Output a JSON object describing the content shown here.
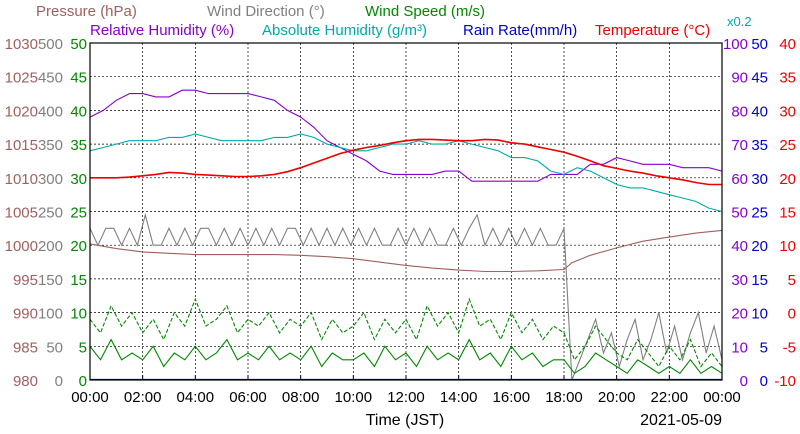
{
  "colors": {
    "pressure": "#a06060",
    "wind_direction": "#808080",
    "wind_speed": "#008800",
    "humidity": "#8800cc",
    "abs_humidity": "#00aaaa",
    "rain": "#0000cc",
    "temperature": "#ee0000",
    "grid": "#000000"
  },
  "chart_data": {
    "type": "line",
    "legend": [
      {
        "key": "pressure",
        "label": "Pressure (hPa)"
      },
      {
        "key": "wind_direction",
        "label": "Wind Direction (°)"
      },
      {
        "key": "wind_speed",
        "label": "Wind Speed (m/s)"
      },
      {
        "key": "humidity",
        "label": "Relative Humidity (%)"
      },
      {
        "key": "abs_humidity",
        "label": "Absolute Humidity (g/m³)"
      },
      {
        "key": "rain",
        "label": "Rain Rate(mm/h)"
      },
      {
        "key": "temperature",
        "label": "Temperature (°C)"
      }
    ],
    "abs_humidity_scale_note": "x0.2",
    "xlabel": "Time (JST)",
    "date_label": "2021-05-09",
    "x_ticks": [
      "00:00",
      "02:00",
      "04:00",
      "06:00",
      "08:00",
      "10:00",
      "12:00",
      "14:00",
      "16:00",
      "18:00",
      "20:00",
      "22:00",
      "00:00"
    ],
    "grid": true,
    "axes": {
      "pressure": {
        "ticks": [
          "1030",
          "1025",
          "1020",
          "1015",
          "1010",
          "1005",
          "1000",
          "995",
          "990",
          "985",
          "980"
        ],
        "ylim": [
          980,
          1030
        ]
      },
      "wind_direction": {
        "ticks": [
          "500",
          "450",
          "400",
          "350",
          "300",
          "250",
          "200",
          "150",
          "100",
          "50",
          "0"
        ],
        "ylim": [
          0,
          500
        ]
      },
      "wind_speed": {
        "ticks": [
          "50",
          "45",
          "40",
          "35",
          "30",
          "25",
          "20",
          "15",
          "10",
          "5",
          "0"
        ],
        "ylim": [
          0,
          50
        ]
      },
      "humidity": {
        "ticks": [
          "100",
          "90",
          "80",
          "70",
          "60",
          "50",
          "40",
          "30",
          "20",
          "10",
          "0"
        ],
        "ylim": [
          0,
          100
        ]
      },
      "rain": {
        "ticks": [
          "50",
          "45",
          "40",
          "35",
          "30",
          "25",
          "20",
          "15",
          "10",
          "5",
          "0"
        ],
        "ylim": [
          0,
          50
        ]
      },
      "temperature": {
        "ticks": [
          "40",
          "35",
          "30",
          "25",
          "20",
          "15",
          "10",
          "5",
          "0",
          "-5",
          "-10"
        ],
        "ylim": [
          -10,
          40
        ]
      }
    },
    "series": [
      {
        "name": "Relative Humidity (%)",
        "axis": "humidity",
        "x": [
          0,
          0.5,
          1,
          1.5,
          2,
          2.5,
          3,
          3.5,
          4,
          4.5,
          5,
          5.5,
          6,
          6.5,
          7,
          7.5,
          8,
          8.5,
          9,
          9.5,
          10,
          10.5,
          11,
          11.5,
          12,
          12.5,
          13,
          13.5,
          14,
          14.5,
          15,
          15.5,
          16,
          16.5,
          17,
          17.5,
          18,
          18.5,
          19,
          19.5,
          20,
          20.5,
          21,
          21.5,
          22,
          22.5,
          23,
          23.5,
          24
        ],
        "y": [
          78,
          80,
          83,
          85,
          85,
          84,
          84,
          86,
          86,
          85,
          85,
          85,
          85,
          84,
          83,
          80,
          78,
          75,
          71,
          69,
          67,
          65,
          62,
          61,
          61,
          61,
          61,
          62,
          62,
          59,
          59,
          59,
          59,
          59,
          59,
          61,
          61,
          61,
          64,
          64,
          66,
          65,
          64,
          64,
          64,
          63,
          63,
          63,
          62
        ]
      },
      {
        "name": "Absolute Humidity (g/m³)",
        "axis": "humidity",
        "x": [
          0,
          0.5,
          1,
          1.5,
          2,
          2.5,
          3,
          3.5,
          4,
          4.5,
          5,
          5.5,
          6,
          6.5,
          7,
          7.5,
          8,
          8.5,
          9,
          9.5,
          10,
          10.5,
          11,
          11.5,
          12,
          12.5,
          13,
          13.5,
          14,
          14.5,
          15,
          15.5,
          16,
          16.5,
          17,
          17.5,
          18,
          18.5,
          19,
          19.5,
          20,
          20.5,
          21,
          21.5,
          22,
          22.5,
          23,
          23.5,
          24
        ],
        "y": [
          68,
          69,
          70,
          71,
          71,
          71,
          72,
          72,
          73,
          72,
          71,
          71,
          71,
          71,
          72,
          72,
          73,
          72,
          70,
          69,
          68,
          68,
          69,
          70,
          70,
          71,
          70,
          70,
          71,
          70,
          69,
          68,
          66,
          66,
          65,
          62,
          61,
          63,
          62,
          60,
          58,
          57,
          57,
          56,
          55,
          54,
          53,
          51,
          50
        ]
      },
      {
        "name": "Temperature (°C)",
        "axis": "temperature",
        "x": [
          0,
          0.5,
          1,
          1.5,
          2,
          2.5,
          3,
          3.5,
          4,
          4.5,
          5,
          5.5,
          6,
          6.5,
          7,
          7.5,
          8,
          8.5,
          9,
          9.5,
          10,
          10.5,
          11,
          11.5,
          12,
          12.5,
          13,
          13.5,
          14,
          14.5,
          15,
          15.5,
          16,
          16.5,
          17,
          17.5,
          18,
          18.5,
          19,
          19.5,
          20,
          20.5,
          21,
          21.5,
          22,
          22.5,
          23,
          23.5,
          24
        ],
        "y": [
          20.0,
          20.0,
          20.0,
          20.1,
          20.3,
          20.5,
          20.8,
          20.7,
          20.5,
          20.4,
          20.3,
          20.2,
          20.2,
          20.3,
          20.5,
          20.9,
          21.5,
          22.2,
          22.9,
          23.6,
          24.1,
          24.5,
          24.8,
          25.2,
          25.5,
          25.7,
          25.7,
          25.6,
          25.5,
          25.5,
          25.7,
          25.6,
          25.2,
          25.0,
          24.6,
          24.2,
          23.8,
          23.2,
          22.5,
          21.8,
          21.4,
          21.0,
          20.7,
          20.3,
          20.0,
          19.7,
          19.3,
          19.0,
          19.0
        ]
      },
      {
        "name": "Pressure (hPa)",
        "axis": "pressure",
        "x": [
          0,
          1,
          2,
          3,
          4,
          5,
          6,
          7,
          8,
          9,
          10,
          11,
          12,
          13,
          14,
          15,
          16,
          17,
          18,
          18.3,
          19,
          20,
          21,
          22,
          23,
          24
        ],
        "y": [
          1000.2,
          999.5,
          999.0,
          998.8,
          998.6,
          998.6,
          998.6,
          998.6,
          998.5,
          998.3,
          998.0,
          997.5,
          997.0,
          996.6,
          996.3,
          996.1,
          996.1,
          996.2,
          996.4,
          997.4,
          998.5,
          999.6,
          1000.6,
          1001.2,
          1001.8,
          1002.2
        ]
      },
      {
        "name": "Wind Direction (°)",
        "axis": "wind_direction",
        "x": [
          0,
          0.3,
          0.6,
          0.9,
          1.2,
          1.5,
          1.8,
          2.1,
          2.4,
          2.7,
          3,
          3.3,
          3.6,
          3.9,
          4.2,
          4.5,
          4.8,
          5.1,
          5.4,
          5.7,
          6,
          6.3,
          6.6,
          6.9,
          7.2,
          7.5,
          7.8,
          8.1,
          8.4,
          8.7,
          9,
          9.3,
          9.6,
          9.9,
          10.2,
          10.5,
          10.8,
          11.1,
          11.4,
          11.7,
          12,
          12.3,
          12.6,
          12.9,
          13.2,
          13.5,
          13.8,
          14.1,
          14.4,
          14.7,
          15,
          15.3,
          15.6,
          15.9,
          16.2,
          16.5,
          16.8,
          17.1,
          17.4,
          17.7,
          18,
          18.3,
          18.6,
          18.9,
          19.2,
          19.5,
          19.8,
          20.1,
          20.4,
          20.7,
          21,
          21.3,
          21.6,
          21.9,
          22.2,
          22.5,
          22.8,
          23.1,
          23.4,
          23.7,
          24
        ],
        "y": [
          225,
          200,
          225,
          225,
          200,
          225,
          200,
          245,
          200,
          200,
          225,
          200,
          225,
          200,
          225,
          225,
          200,
          225,
          200,
          225,
          200,
          225,
          200,
          225,
          200,
          225,
          225,
          200,
          225,
          200,
          225,
          200,
          225,
          200,
          225,
          200,
          225,
          200,
          200,
          225,
          200,
          225,
          200,
          225,
          200,
          200,
          225,
          200,
          225,
          245,
          200,
          225,
          200,
          225,
          200,
          225,
          200,
          225,
          200,
          200,
          225,
          0,
          30,
          60,
          90,
          40,
          70,
          20,
          60,
          90,
          30,
          60,
          100,
          40,
          80,
          30,
          70,
          100,
          40,
          80,
          30
        ]
      },
      {
        "name": "Wind Speed (m/s)",
        "axis": "wind_speed",
        "style": "solid",
        "x": [
          0,
          0.4,
          0.8,
          1.2,
          1.6,
          2,
          2.4,
          2.8,
          3.2,
          3.6,
          4,
          4.4,
          4.8,
          5.2,
          5.6,
          6,
          6.4,
          6.8,
          7.2,
          7.6,
          8,
          8.4,
          8.8,
          9.2,
          9.6,
          10,
          10.4,
          10.8,
          11.2,
          11.6,
          12,
          12.4,
          12.8,
          13.2,
          13.6,
          14,
          14.4,
          14.8,
          15.2,
          15.6,
          16,
          16.4,
          16.8,
          17.2,
          17.6,
          18,
          18.4,
          18.8,
          19.2,
          19.6,
          20,
          20.4,
          20.8,
          21.2,
          21.6,
          22,
          22.4,
          22.8,
          23.2,
          23.6,
          24
        ],
        "y": [
          5,
          3,
          6,
          3,
          4,
          3,
          5,
          2,
          4,
          3,
          5,
          3,
          4,
          6,
          3,
          4,
          3,
          5,
          3,
          4,
          3,
          5,
          2,
          4,
          3,
          3,
          4,
          2,
          5,
          3,
          4,
          2,
          5,
          3,
          4,
          3,
          6,
          3,
          4,
          2,
          5,
          3,
          4,
          2,
          3,
          3,
          1,
          2,
          4,
          3,
          2,
          1,
          3,
          2,
          1,
          2,
          1,
          3,
          1,
          2,
          1
        ]
      },
      {
        "name": "Wind Speed (m/s)",
        "axis": "wind_speed",
        "style": "dashed",
        "x": [
          0,
          0.4,
          0.8,
          1.2,
          1.6,
          2,
          2.4,
          2.8,
          3.2,
          3.6,
          4,
          4.4,
          4.8,
          5.2,
          5.6,
          6,
          6.4,
          6.8,
          7.2,
          7.6,
          8,
          8.4,
          8.8,
          9.2,
          9.6,
          10,
          10.4,
          10.8,
          11.2,
          11.6,
          12,
          12.4,
          12.8,
          13.2,
          13.6,
          14,
          14.4,
          14.8,
          15.2,
          15.6,
          16,
          16.4,
          16.8,
          17.2,
          17.6,
          18,
          18.4,
          18.8,
          19.2,
          19.6,
          20,
          20.4,
          20.8,
          21.2,
          21.6,
          22,
          22.4,
          22.8,
          23.2,
          23.6,
          24
        ],
        "y": [
          9,
          7,
          11,
          8,
          10,
          7,
          9,
          6,
          10,
          8,
          12,
          8,
          9,
          11,
          7,
          9,
          8,
          10,
          7,
          9,
          8,
          10,
          6,
          9,
          7,
          8,
          10,
          6,
          9,
          7,
          9,
          6,
          11,
          8,
          10,
          7,
          12,
          8,
          9,
          6,
          10,
          7,
          9,
          6,
          8,
          7,
          3,
          5,
          8,
          6,
          4,
          3,
          6,
          4,
          2,
          5,
          3,
          6,
          2,
          4,
          2
        ]
      }
    ]
  }
}
